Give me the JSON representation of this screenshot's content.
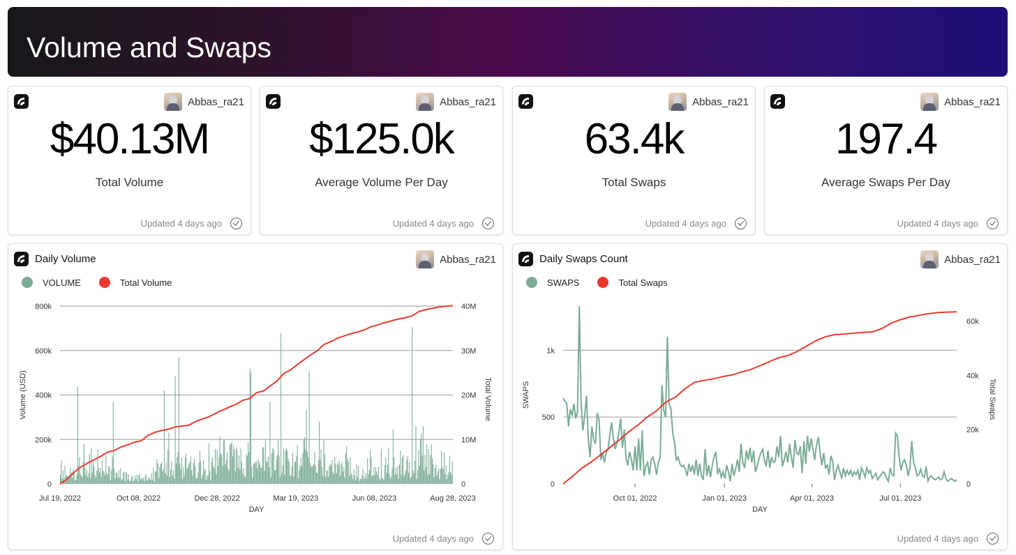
{
  "page": {
    "title": "Volume and Swaps"
  },
  "author": {
    "name": "Abbas_ra21"
  },
  "updated_text": "Updated 4 days ago",
  "metrics": [
    {
      "value": "$40.13M",
      "label": "Total Volume"
    },
    {
      "value": "$125.0k",
      "label": "Average Volume Per Day"
    },
    {
      "value": "63.4k",
      "label": "Total Swaps"
    },
    {
      "value": "197.4",
      "label": "Average Swaps Per Day"
    }
  ],
  "colors": {
    "bar": "#7aab95",
    "line": "#e83a30",
    "grid": "#9a9a9a"
  },
  "icons": {
    "logo": "flipside-logo-icon",
    "check": "check-circle-icon",
    "avatar": "user-avatar"
  },
  "chart_data": [
    {
      "type": "bar",
      "title": "Daily Volume",
      "legend": [
        "VOLUME",
        "Total Volume"
      ],
      "xlabel": "DAY",
      "ylabel": "Volume (USD)",
      "y2label": "Total Volume",
      "x_ticks": [
        "Jul 19, 2022",
        "Oct 08, 2022",
        "Dec 28, 2022",
        "Mar 19, 2023",
        "Jun 08, 2023",
        "Aug 28, 2023"
      ],
      "y_ticks": [
        "0",
        "200k",
        "400k",
        "600k",
        "800k"
      ],
      "y2_ticks": [
        "0",
        "10M",
        "20M",
        "30M",
        "40M"
      ],
      "ylim": [
        0,
        800000
      ],
      "y2lim": [
        0,
        40000000
      ],
      "x_range": [
        "2022-07-19",
        "2023-08-28"
      ],
      "series": [
        {
          "name": "VOLUME",
          "kind": "bar",
          "color": "#7aab95",
          "values": [
            40000,
            105000,
            24000,
            60000,
            20000,
            80000,
            32000,
            38000,
            36000,
            30000,
            40000,
            75000,
            50000,
            25000,
            65000,
            46000,
            15000,
            20000,
            40000,
            436000,
            80000,
            120000,
            45000,
            35000,
            30000,
            100000,
            180000,
            75000,
            40000,
            65000,
            30000,
            48000,
            135000,
            25000,
            160000,
            50000,
            100000,
            80000,
            40000,
            28000,
            60000,
            155000,
            73000,
            50000,
            70000,
            32000,
            105000,
            58000,
            55000,
            40000,
            128000,
            50000,
            42000,
            80000,
            75000,
            16000,
            63000,
            122000,
            368000,
            69000,
            25000,
            52000,
            50000,
            29000,
            62000,
            27000,
            70000,
            18000,
            21000,
            52000,
            54000,
            12000,
            54000,
            46000,
            19000,
            44000,
            12000,
            15000,
            31000,
            36000,
            11000,
            18000,
            37000,
            22000,
            42000,
            10000,
            38000,
            46000,
            18000,
            27000,
            23000,
            28000,
            13000,
            34000,
            45000,
            16000,
            21000,
            32000,
            24000,
            18000,
            47000,
            18000,
            73000,
            11000,
            56000,
            58000,
            112000,
            92000,
            26000,
            76000,
            91000,
            98000,
            57000,
            65000,
            420000,
            46000,
            96000,
            38000,
            156000,
            230000,
            30000,
            65000,
            100000,
            38000,
            60000,
            25000,
            485000,
            92000,
            120000,
            142000,
            570000,
            91000,
            65000,
            116000,
            22000,
            75000,
            38000,
            118000,
            137000,
            68000,
            75000,
            90000,
            99000,
            124000,
            62000,
            37000,
            94000,
            115000,
            78000,
            28000,
            25000,
            51000,
            95000,
            150000,
            102000,
            25000,
            42000,
            108000,
            60000,
            68000,
            18000,
            38000,
            37000,
            183000,
            58000,
            17000,
            100000,
            119000,
            79000,
            70000,
            157000,
            44000,
            156000,
            81000,
            122000,
            212000,
            138000,
            130000,
            81000,
            195000,
            198000,
            87000,
            109000,
            144000,
            70000,
            59000,
            177000,
            180000,
            190000,
            123000,
            174000,
            154000,
            58000,
            165000,
            150000,
            72000,
            128000,
            65000,
            160000,
            100000,
            45000,
            71000,
            35000,
            30000,
            135000,
            125000,
            187000,
            144000,
            520000,
            500000,
            74000,
            27000,
            89000,
            93000,
            99000,
            100000,
            70000,
            111000,
            99000,
            87000,
            72000,
            75000,
            163000,
            166000,
            60000,
            195000,
            102000,
            99000,
            123000,
            74000,
            370000,
            30000,
            137000,
            161000,
            155000,
            61000,
            63000,
            108000,
            130000,
            197000,
            125000,
            30000,
            680000,
            46000,
            85000,
            162000,
            41000,
            150000,
            160000,
            150000,
            113000,
            101000,
            36000,
            38000,
            81000,
            140000,
            33000,
            100000,
            100000,
            125000,
            175000,
            25000,
            64000,
            80000,
            120000,
            81000,
            140000,
            200000,
            210000,
            155000,
            335000,
            146000,
            120000,
            505000,
            94000,
            78000,
            80000,
            79000,
            90000,
            145000,
            80000,
            50000,
            50000,
            105000,
            280000,
            110000,
            155000,
            75000,
            35000,
            200000,
            135000,
            30000,
            60000,
            58000,
            33000,
            79000,
            91000,
            82000,
            108000,
            54000,
            43000,
            122000,
            90000,
            47000,
            94000,
            84000,
            104000,
            36000,
            87000,
            97000,
            55000,
            75000,
            30000,
            140000,
            170000,
            114000,
            102000,
            36000,
            120000,
            48000,
            39000,
            21000,
            66000,
            38000,
            17000,
            89000,
            31000,
            81000,
            14000,
            23000,
            21000,
            38000,
            68000,
            23000,
            32000,
            49000,
            23000,
            116000,
            44000,
            62000,
            155000,
            120000,
            36000,
            37000,
            76000,
            42000,
            75000,
            56000,
            40000,
            78000,
            24000,
            18000,
            158000,
            29000,
            21000,
            20000,
            85000,
            120000,
            48000,
            87000,
            160000,
            46000,
            23000,
            33000,
            72000,
            245000,
            120000,
            42000,
            72000,
            44000,
            80000,
            24000,
            86000,
            150000,
            40000,
            120000,
            130000,
            34000,
            45000,
            62000,
            108000,
            125000,
            50000,
            97000,
            25000,
            35000,
            705000,
            60000,
            47000,
            104000,
            260000,
            21000,
            63000,
            150000,
            82000,
            205000,
            227000,
            127000,
            260000,
            60000,
            130000,
            75000,
            178000,
            40000,
            156000,
            45000,
            130000,
            178000,
            116000,
            88000,
            30000,
            70000,
            86000,
            40000,
            56000,
            68000,
            21000,
            70000,
            150000,
            75000,
            66000,
            142000,
            44000,
            86000,
            21000,
            42000,
            52000,
            125000,
            55000,
            43000,
            100000
          ]
        },
        {
          "name": "Total Volume",
          "kind": "line",
          "color": "#e83a30",
          "axis": "right",
          "values": [
            0,
            1000000,
            2500000,
            3700000,
            4600000,
            5400000,
            6200000,
            7100000,
            7500000,
            8300000,
            8800000,
            9400000,
            9700000,
            10900000,
            11600000,
            12000000,
            12300000,
            12800000,
            13000000,
            13200000,
            14000000,
            14600000,
            15100000,
            15900000,
            16600000,
            17300000,
            17900000,
            18800000,
            19200000,
            20500000,
            20900000,
            22000000,
            23100000,
            24800000,
            25600000,
            26800000,
            27900000,
            29000000,
            30000000,
            31400000,
            32000000,
            32800000,
            33300000,
            33800000,
            34200000,
            34700000,
            35400000,
            35800000,
            36300000,
            36700000,
            37100000,
            37400000,
            37800000,
            38800000,
            39200000,
            39500000,
            39800000,
            40000000,
            40100000
          ]
        }
      ]
    },
    {
      "type": "line",
      "title": "Daily Swaps Count",
      "legend": [
        "SWAPS",
        "Total Swaps"
      ],
      "xlabel": "DAY",
      "ylabel": "SWAPS",
      "y2label": "Total Swaps",
      "x_ticks": [
        "Oct 01, 2022",
        "Jan 01, 2023",
        "Apr 01, 2023",
        "Jul 01, 2023"
      ],
      "y_ticks": [
        "0",
        "500",
        "1k"
      ],
      "y2_ticks": [
        "0",
        "20k",
        "40k",
        "60k"
      ],
      "ylim": [
        0,
        1330
      ],
      "y2lim": [
        0,
        65500
      ],
      "x_range": [
        "2022-07-19",
        "2023-08-28"
      ],
      "series": [
        {
          "name": "SWAPS",
          "kind": "line",
          "color": "#7aab95",
          "values": [
            640,
            620,
            600,
            430,
            560,
            510,
            600,
            490,
            540,
            1330,
            600,
            400,
            510,
            660,
            330,
            200,
            430,
            330,
            300,
            530,
            480,
            180,
            230,
            160,
            240,
            260,
            370,
            460,
            340,
            260,
            310,
            380,
            490,
            270,
            410,
            190,
            140,
            240,
            180,
            100,
            280,
            100,
            340,
            100,
            400,
            60,
            130,
            160,
            70,
            180,
            200,
            150,
            70,
            160,
            200,
            740,
            550,
            500,
            1100,
            600,
            560,
            380,
            310,
            180,
            200,
            150,
            130,
            140,
            110,
            60,
            150,
            90,
            140,
            70,
            180,
            60,
            150,
            60,
            30,
            260,
            60,
            140,
            50,
            140,
            200,
            240,
            80,
            110,
            50,
            90,
            40,
            140,
            90,
            20,
            150,
            60,
            110,
            180,
            90,
            300,
            160,
            120,
            250,
            180,
            270,
            160,
            250,
            90,
            130,
            190,
            230,
            260,
            180,
            130,
            250,
            120,
            200,
            160,
            170,
            280,
            200,
            360,
            130,
            180,
            240,
            160,
            300,
            200,
            120,
            330,
            230,
            220,
            280,
            80,
            320,
            150,
            360,
            240,
            340,
            260,
            180,
            290,
            350,
            230,
            140,
            230,
            120,
            140,
            70,
            210,
            170,
            30,
            100,
            140,
            90,
            40,
            120,
            60,
            100,
            70,
            100,
            60,
            90,
            70,
            100,
            30,
            120,
            90,
            50,
            120,
            80,
            100,
            40,
            60,
            80,
            30,
            50,
            70,
            90,
            80,
            40,
            20,
            120,
            70,
            60,
            380,
            360,
            200,
            100,
            160,
            180,
            140,
            60,
            120,
            320,
            160,
            120,
            60,
            70,
            110,
            60,
            50,
            130,
            20,
            50,
            60,
            40,
            30,
            40,
            50,
            30,
            40,
            90,
            40,
            20,
            30,
            40,
            30,
            20,
            30
          ]
        },
        {
          "name": "Total Swaps",
          "kind": "line",
          "color": "#e83a30",
          "axis": "right",
          "values": [
            0,
            2800,
            5800,
            8100,
            10700,
            13400,
            16200,
            19200,
            21700,
            24700,
            27000,
            30200,
            32000,
            35000,
            37400,
            38100,
            38700,
            39500,
            40100,
            41200,
            42100,
            43500,
            45000,
            46500,
            47300,
            48800,
            50800,
            52800,
            54200,
            55000,
            55200,
            55500,
            55800,
            56000,
            57200,
            59200,
            60500,
            61500,
            62100,
            62700,
            63100,
            63300,
            63400
          ]
        }
      ]
    }
  ]
}
